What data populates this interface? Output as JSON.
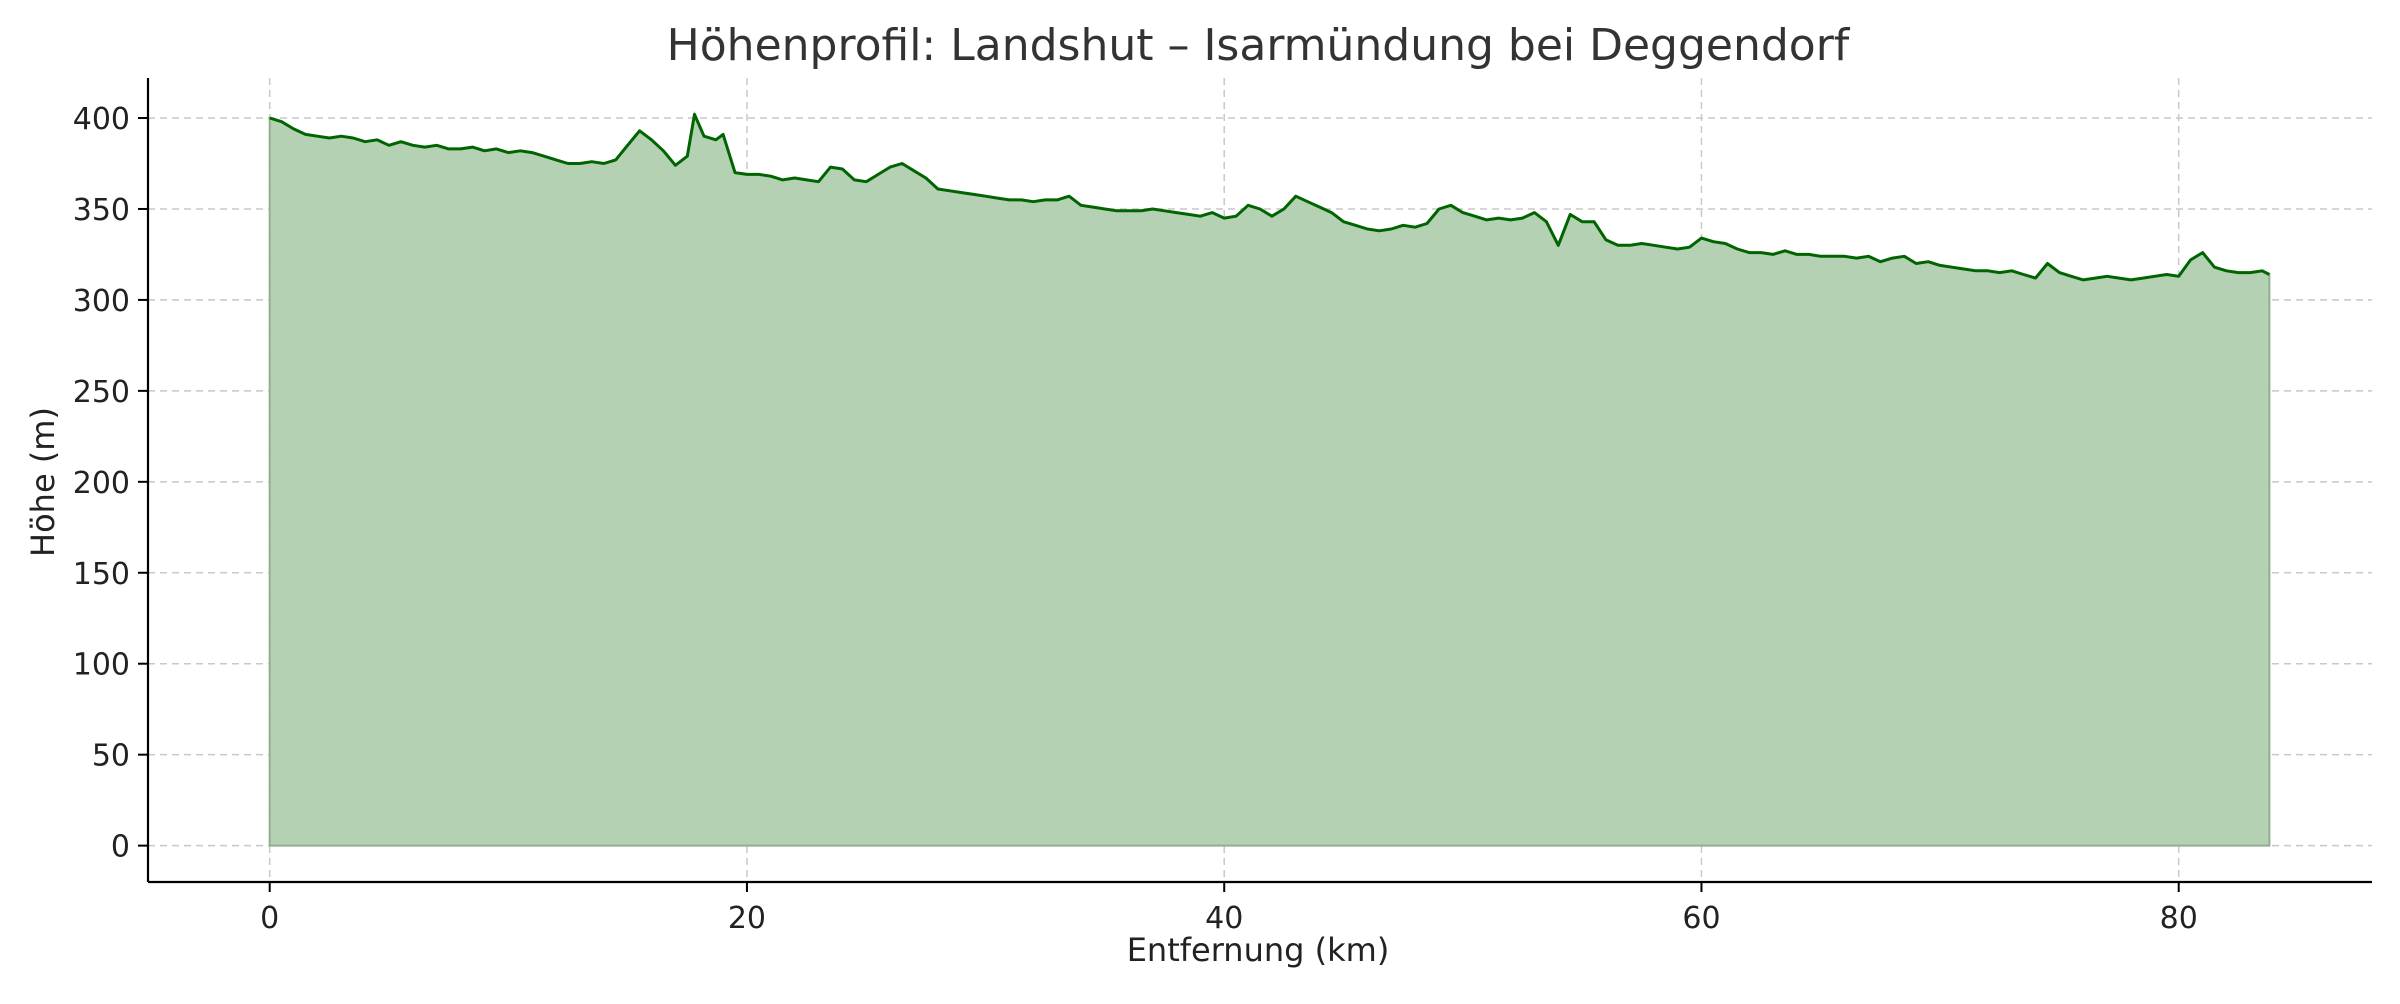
{
  "chart_data": {
    "type": "area",
    "title": "Höhenprofil: Landshut – Isarmündung bei Deggendorf",
    "xlabel": "Entfernung (km)",
    "ylabel": "Höhe (m)",
    "xlim": [
      -5.1,
      88.1
    ],
    "ylim": [
      -20,
      422
    ],
    "x_ticks": [
      0,
      20,
      40,
      60,
      80
    ],
    "y_ticks": [
      0,
      50,
      100,
      150,
      200,
      250,
      300,
      350,
      400
    ],
    "grid": true,
    "colors": {
      "line": "#006400",
      "fill": "#b3cfb2"
    },
    "series": [
      {
        "points": [
          [
            0,
            400
          ],
          [
            0.5,
            398
          ],
          [
            1,
            394
          ],
          [
            1.5,
            391
          ],
          [
            2,
            390
          ],
          [
            2.5,
            389
          ],
          [
            3,
            390
          ],
          [
            3.5,
            389
          ],
          [
            4,
            387
          ],
          [
            4.5,
            388
          ],
          [
            5,
            385
          ],
          [
            5.5,
            387
          ],
          [
            6,
            385
          ],
          [
            6.5,
            384
          ],
          [
            7,
            385
          ],
          [
            7.5,
            383
          ],
          [
            8,
            383
          ],
          [
            8.5,
            384
          ],
          [
            9,
            382
          ],
          [
            9.5,
            383
          ],
          [
            10,
            381
          ],
          [
            10.5,
            382
          ],
          [
            11,
            381
          ],
          [
            11.5,
            379
          ],
          [
            12,
            377
          ],
          [
            12.5,
            375
          ],
          [
            13,
            375
          ],
          [
            13.5,
            376
          ],
          [
            14,
            375
          ],
          [
            14.5,
            377
          ],
          [
            15,
            385
          ],
          [
            15.5,
            393
          ],
          [
            16,
            388
          ],
          [
            16.5,
            382
          ],
          [
            17,
            374
          ],
          [
            17.5,
            379
          ],
          [
            17.8,
            402
          ],
          [
            18.2,
            390
          ],
          [
            18.7,
            388
          ],
          [
            19,
            391
          ],
          [
            19.5,
            370
          ],
          [
            20,
            369
          ],
          [
            20.5,
            369
          ],
          [
            21,
            368
          ],
          [
            21.5,
            366
          ],
          [
            22,
            367
          ],
          [
            22.5,
            366
          ],
          [
            23,
            365
          ],
          [
            23.5,
            373
          ],
          [
            24,
            372
          ],
          [
            24.5,
            366
          ],
          [
            25,
            365
          ],
          [
            25.5,
            369
          ],
          [
            26,
            373
          ],
          [
            26.5,
            375
          ],
          [
            27,
            371
          ],
          [
            27.5,
            367
          ],
          [
            28,
            361
          ],
          [
            28.5,
            360
          ],
          [
            29,
            359
          ],
          [
            29.5,
            358
          ],
          [
            30,
            357
          ],
          [
            30.5,
            356
          ],
          [
            31,
            355
          ],
          [
            31.5,
            355
          ],
          [
            32,
            354
          ],
          [
            32.5,
            355
          ],
          [
            33,
            355
          ],
          [
            33.5,
            357
          ],
          [
            34,
            352
          ],
          [
            34.5,
            351
          ],
          [
            35,
            350
          ],
          [
            35.5,
            349
          ],
          [
            36,
            349
          ],
          [
            36.5,
            349
          ],
          [
            37,
            350
          ],
          [
            37.5,
            349
          ],
          [
            38,
            348
          ],
          [
            38.5,
            347
          ],
          [
            39,
            346
          ],
          [
            39.5,
            348
          ],
          [
            40,
            345
          ],
          [
            40.5,
            346
          ],
          [
            41,
            352
          ],
          [
            41.5,
            350
          ],
          [
            42,
            346
          ],
          [
            42.5,
            350
          ],
          [
            43,
            357
          ],
          [
            43.5,
            354
          ],
          [
            44,
            351
          ],
          [
            44.5,
            348
          ],
          [
            45,
            343
          ],
          [
            45.5,
            341
          ],
          [
            46,
            339
          ],
          [
            46.5,
            338
          ],
          [
            47,
            339
          ],
          [
            47.5,
            341
          ],
          [
            48,
            340
          ],
          [
            48.5,
            342
          ],
          [
            49,
            350
          ],
          [
            49.5,
            352
          ],
          [
            50,
            348
          ],
          [
            50.5,
            346
          ],
          [
            51,
            344
          ],
          [
            51.5,
            345
          ],
          [
            52,
            344
          ],
          [
            52.5,
            345
          ],
          [
            53,
            348
          ],
          [
            53.5,
            343
          ],
          [
            54,
            330
          ],
          [
            54.5,
            347
          ],
          [
            55,
            343
          ],
          [
            55.5,
            343
          ],
          [
            56,
            333
          ],
          [
            56.5,
            330
          ],
          [
            57,
            330
          ],
          [
            57.5,
            331
          ],
          [
            58,
            330
          ],
          [
            58.5,
            329
          ],
          [
            59,
            328
          ],
          [
            59.5,
            329
          ],
          [
            60,
            334
          ],
          [
            60.5,
            332
          ],
          [
            61,
            331
          ],
          [
            61.5,
            328
          ],
          [
            62,
            326
          ],
          [
            62.5,
            326
          ],
          [
            63,
            325
          ],
          [
            63.5,
            327
          ],
          [
            64,
            325
          ],
          [
            64.5,
            325
          ],
          [
            65,
            324
          ],
          [
            65.5,
            324
          ],
          [
            66,
            324
          ],
          [
            66.5,
            323
          ],
          [
            67,
            324
          ],
          [
            67.5,
            321
          ],
          [
            68,
            323
          ],
          [
            68.5,
            324
          ],
          [
            69,
            320
          ],
          [
            69.5,
            321
          ],
          [
            70,
            319
          ],
          [
            70.5,
            318
          ],
          [
            71,
            317
          ],
          [
            71.5,
            316
          ],
          [
            72,
            316
          ],
          [
            72.5,
            315
          ],
          [
            73,
            316
          ],
          [
            73.5,
            314
          ],
          [
            74,
            312
          ],
          [
            74.5,
            320
          ],
          [
            75,
            315
          ],
          [
            75.5,
            313
          ],
          [
            76,
            311
          ],
          [
            76.5,
            312
          ],
          [
            77,
            313
          ],
          [
            77.5,
            312
          ],
          [
            78,
            311
          ],
          [
            78.5,
            312
          ],
          [
            79,
            313
          ],
          [
            79.5,
            314
          ],
          [
            80,
            313
          ],
          [
            80.5,
            322
          ],
          [
            81,
            326
          ],
          [
            81.5,
            318
          ],
          [
            82,
            316
          ],
          [
            82.5,
            315
          ],
          [
            83,
            315
          ],
          [
            83.5,
            316
          ],
          [
            83.8,
            314
          ]
        ]
      }
    ]
  }
}
